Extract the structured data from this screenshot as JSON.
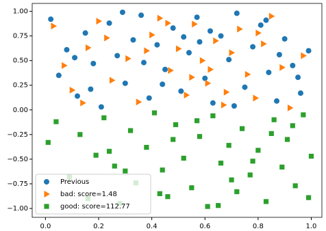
{
  "chart_data": {
    "type": "scatter",
    "xlim": [
      -0.05,
      1.04
    ],
    "ylim": [
      -1.09,
      1.08
    ],
    "xticks": [
      {
        "value": 0,
        "label": "0.0"
      },
      {
        "value": 0.2,
        "label": "0.2"
      },
      {
        "value": 0.4,
        "label": "0.4"
      },
      {
        "value": 0.6,
        "label": "0.6"
      },
      {
        "value": 0.8,
        "label": "0.8"
      },
      {
        "value": 1,
        "label": "1.0"
      }
    ],
    "yticks": [
      {
        "value": -1,
        "label": "−1.00"
      },
      {
        "value": -0.75,
        "label": "−0.75"
      },
      {
        "value": -0.5,
        "label": "−0.50"
      },
      {
        "value": -0.25,
        "label": "−0.25"
      },
      {
        "value": 0,
        "label": "0.00"
      },
      {
        "value": 0.25,
        "label": "0.25"
      },
      {
        "value": 0.5,
        "label": "0.50"
      },
      {
        "value": 0.75,
        "label": "0.75"
      },
      {
        "value": 1,
        "label": "1.00"
      }
    ],
    "legend": "lower left",
    "series": [
      {
        "name": "Previous",
        "color": "#1f77b4",
        "marker": "circle",
        "x": [
          0.02,
          0.05,
          0.08,
          0.12,
          0.15,
          0.18,
          0.21,
          0.24,
          0.27,
          0.3,
          0.33,
          0.36,
          0.39,
          0.42,
          0.45,
          0.48,
          0.51,
          0.54,
          0.57,
          0.6,
          0.63,
          0.66,
          0.69,
          0.72,
          0.75,
          0.78,
          0.81,
          0.84,
          0.87,
          0.9,
          0.93,
          0.96,
          0.99,
          0.11,
          0.29,
          0.44,
          0.58,
          0.71,
          0.83,
          0.95,
          0.37,
          0.62,
          0.17,
          0.52,
          0.88
        ],
        "y": [
          0.92,
          0.35,
          0.61,
          0.14,
          0.78,
          0.47,
          0.03,
          0.88,
          0.55,
          0.27,
          0.71,
          0.96,
          0.12,
          0.66,
          0.41,
          0.83,
          0.19,
          0.58,
          0.94,
          0.32,
          0.07,
          0.75,
          0.51,
          0.98,
          0.23,
          0.64,
          0.86,
          0.38,
          0.09,
          0.72,
          0.45,
          0.17,
          0.6,
          0.53,
          0.99,
          0.26,
          0.69,
          0.04,
          0.91,
          0.33,
          0.48,
          0.8,
          0.21,
          0.74,
          0.56
        ]
      },
      {
        "name": "bad: score=1.48",
        "color": "#ff7f0e",
        "marker": "triangle-right",
        "x": [
          0.03,
          0.07,
          0.1,
          0.16,
          0.2,
          0.25,
          0.31,
          0.35,
          0.4,
          0.43,
          0.47,
          0.5,
          0.53,
          0.56,
          0.59,
          0.61,
          0.64,
          0.67,
          0.7,
          0.73,
          0.76,
          0.79,
          0.82,
          0.85,
          0.89,
          0.92,
          0.97,
          0.23,
          0.46,
          0.62,
          0.38,
          0.55,
          0.68,
          0.14,
          0.8
        ],
        "y": [
          0.85,
          0.45,
          0.2,
          0.63,
          0.9,
          0.3,
          0.52,
          0.08,
          0.76,
          0.93,
          0.4,
          0.62,
          0.15,
          0.87,
          0.5,
          0.27,
          0.7,
          0.05,
          0.58,
          0.82,
          0.36,
          0.12,
          0.67,
          0.95,
          0.43,
          0.02,
          0.55,
          0.73,
          0.88,
          0.41,
          0.6,
          0.33,
          0.18,
          0.07,
          0.78
        ]
      },
      {
        "name": "good: score=112.77",
        "color": "#2ca02c",
        "marker": "square",
        "x": [
          0.01,
          0.04,
          0.09,
          0.13,
          0.16,
          0.19,
          0.22,
          0.26,
          0.28,
          0.32,
          0.34,
          0.38,
          0.41,
          0.44,
          0.46,
          0.49,
          0.52,
          0.55,
          0.58,
          0.61,
          0.63,
          0.66,
          0.69,
          0.72,
          0.74,
          0.77,
          0.8,
          0.83,
          0.86,
          0.89,
          0.91,
          0.94,
          0.97,
          1.0,
          0.3,
          0.43,
          0.57,
          0.7,
          0.85,
          0.99,
          0.24,
          0.48,
          0.65,
          0.78,
          0.93
        ],
        "y": [
          -0.33,
          -0.12,
          -0.68,
          -0.25,
          -0.9,
          -0.46,
          -0.08,
          -0.57,
          -0.95,
          -0.21,
          -0.74,
          -0.38,
          -0.03,
          -0.61,
          -0.88,
          -0.15,
          -0.49,
          -0.79,
          -0.27,
          -0.98,
          -0.06,
          -0.54,
          -0.36,
          -0.83,
          -0.19,
          -0.66,
          -0.41,
          -0.93,
          -0.1,
          -0.58,
          -0.3,
          -0.77,
          -0.05,
          -0.47,
          -0.62,
          -0.85,
          -0.11,
          -0.71,
          -0.24,
          -0.89,
          -0.42,
          -0.3,
          -0.97,
          -0.52,
          -0.16
        ]
      }
    ]
  }
}
